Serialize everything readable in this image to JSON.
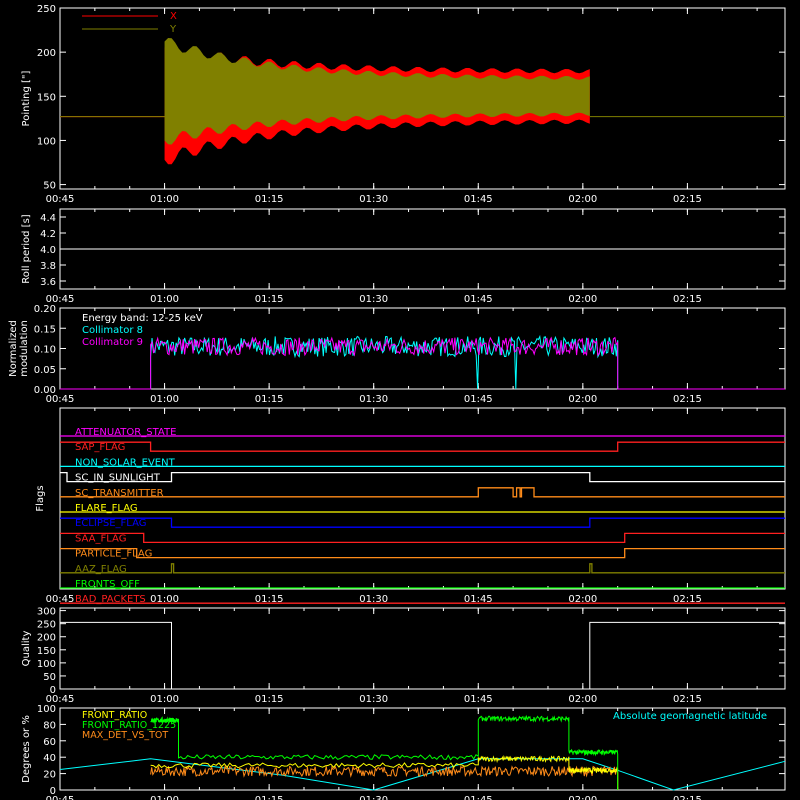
{
  "time_axis": {
    "ticks": [
      "00:45",
      "01:00",
      "01:15",
      "01:30",
      "01:45",
      "02:00",
      "02:15"
    ]
  },
  "colors": {
    "background": "#000000",
    "axes": "#ffffff",
    "x_series": "#ff0000",
    "y_series": "#808000",
    "white": "#ffffff",
    "cyan": "#00ffff",
    "magenta": "#ff00ff",
    "green": "#00ff00",
    "orange": "#ff8c1a",
    "yellow": "#ffff00",
    "blue": "#0000ff",
    "red": "#ff2020"
  },
  "chart_data": [
    {
      "type": "area",
      "ylabel": "Pointing [\"]",
      "ylim": [
        45,
        250
      ],
      "yticks": [
        "50",
        "100",
        "150",
        "200",
        "250"
      ],
      "legend_position": "top-left",
      "series": [
        {
          "name": "X",
          "color_key": "x_series",
          "start_time": "01:00",
          "end_time": "02:01",
          "envelope_start": [
            78,
            205
          ],
          "envelope_end": [
            122,
            178
          ],
          "baseline": 127
        },
        {
          "name": "Y",
          "color_key": "y_series",
          "start_time": "01:00",
          "end_time": "02:01",
          "envelope_start": [
            100,
            212
          ],
          "envelope_end": [
            130,
            170
          ],
          "baseline": 127
        }
      ]
    },
    {
      "type": "line",
      "ylabel": "Roll period [s]",
      "ylim": [
        3.5,
        4.5
      ],
      "yticks": [
        "3.6",
        "3.8",
        "4.0",
        "4.2",
        "4.4"
      ],
      "series": [
        {
          "name": "",
          "color_key": "white",
          "value": 4.0
        }
      ]
    },
    {
      "type": "line",
      "ylabel": "Normalized modulation",
      "ylim": [
        0.0,
        0.2
      ],
      "yticks": [
        "0.00",
        "0.05",
        "0.10",
        "0.15",
        "0.20"
      ],
      "annotation": "Energy band: 12-25 keV",
      "series": [
        {
          "name": "Collimator 8",
          "color_key": "cyan",
          "start_time": "00:58",
          "end_time": "02:05",
          "mean": 0.105,
          "spread": 0.025,
          "dropouts": [
            [
              "01:44.7",
              "01:45.0"
            ],
            [
              "01:50.2",
              "01:50.5"
            ]
          ]
        },
        {
          "name": "Collimator 9",
          "color_key": "magenta",
          "start_time": "00:58",
          "end_time": "02:05",
          "mean": 0.105,
          "spread": 0.022
        }
      ]
    },
    {
      "type": "line",
      "ylabel": "Flags",
      "flags": [
        {
          "name": "ATTENUATOR_STATE",
          "color_key": "magenta",
          "segments": [
            [
              "00:45",
              "02:29",
              0
            ]
          ]
        },
        {
          "name": "SAP_FLAG",
          "color_key": "red",
          "segments": [
            [
              "00:45",
              "00:58",
              1
            ],
            [
              "00:58",
              "02:05",
              0
            ],
            [
              "02:05",
              "02:29",
              1
            ]
          ]
        },
        {
          "name": "NON_SOLAR_EVENT",
          "color_key": "cyan",
          "segments": [
            [
              "00:45",
              "02:29",
              0
            ]
          ]
        },
        {
          "name": "SC_IN_SUNLIGHT",
          "color_key": "white",
          "segments": [
            [
              "00:45",
              "00:46",
              1
            ],
            [
              "00:46",
              "01:01",
              0
            ],
            [
              "01:01",
              "02:01",
              1
            ],
            [
              "02:01",
              "02:29",
              0
            ]
          ]
        },
        {
          "name": "SC_TRANSMITTER",
          "color_key": "orange",
          "segments": [
            [
              "00:45",
              "01:45",
              0
            ],
            [
              "01:45",
              "01:50",
              1
            ],
            [
              "01:50",
              "01:50.5",
              0
            ],
            [
              "01:50.5",
              "01:51",
              1
            ],
            [
              "01:51",
              "01:51.2",
              0
            ],
            [
              "01:51.2",
              "01:53",
              1
            ],
            [
              "01:53",
              "02:29",
              0
            ]
          ]
        },
        {
          "name": "FLARE_FLAG",
          "color_key": "yellow",
          "segments": [
            [
              "00:45",
              "02:29",
              0
            ]
          ]
        },
        {
          "name": "ECLIPSE_FLAG",
          "color_key": "blue",
          "segments": [
            [
              "00:45",
              "01:01",
              1
            ],
            [
              "01:01",
              "02:01",
              0
            ],
            [
              "02:01",
              "02:29",
              1
            ]
          ]
        },
        {
          "name": "SAA_FLAG",
          "color_key": "red",
          "segments": [
            [
              "00:45",
              "00:57",
              1
            ],
            [
              "00:57",
              "02:06",
              0
            ],
            [
              "02:06",
              "02:29",
              1
            ]
          ]
        },
        {
          "name": "PARTICLE_FLAG",
          "color_key": "orange",
          "segments": [
            [
              "00:45",
              "00:56",
              1
            ],
            [
              "00:56",
              "02:06",
              0
            ],
            [
              "02:06",
              "02:29",
              1
            ]
          ]
        },
        {
          "name": "AAZ_FLAG",
          "color_key": "y_series",
          "segments": [
            [
              "00:45",
              "01:01",
              0
            ],
            [
              "01:01",
              "01:01.3",
              1
            ],
            [
              "01:01.3",
              "02:01",
              0
            ],
            [
              "02:01",
              "02:01.3",
              1
            ],
            [
              "02:01.3",
              "02:29",
              0
            ]
          ]
        },
        {
          "name": "FRONTS_OFF",
          "color_key": "green",
          "segments": [
            [
              "00:45",
              "02:29",
              0
            ]
          ]
        },
        {
          "name": "BAD_PACKETS",
          "color_key": "red",
          "segments": [
            [
              "00:45",
              "02:29",
              0
            ]
          ]
        }
      ]
    },
    {
      "type": "line",
      "ylabel": "Quality",
      "ylim": [
        0,
        310
      ],
      "yticks": [
        "0",
        "50",
        "100",
        "150",
        "200",
        "250",
        "300"
      ],
      "series": [
        {
          "name": "",
          "color_key": "white",
          "points": [
            [
              "00:45",
              255
            ],
            [
              "01:01",
              255
            ],
            [
              "01:01",
              0
            ],
            [
              "02:01",
              0
            ],
            [
              "02:01",
              255
            ],
            [
              "02:29",
              255
            ]
          ]
        }
      ]
    },
    {
      "type": "line",
      "ylabel": "Degrees or %",
      "ylim": [
        0,
        100
      ],
      "yticks": [
        "0",
        "20",
        "40",
        "60",
        "80",
        "100"
      ],
      "series": [
        {
          "name": "FRONT_RATIO",
          "color_key": "yellow"
        },
        {
          "name": "FRONT_RATIO_1225",
          "color_key": "green"
        },
        {
          "name": "MAX_DET_VS_TOT",
          "color_key": "orange"
        },
        {
          "name": "Absolute geomagnetic latitude",
          "color_key": "cyan"
        }
      ],
      "green_levels": [
        [
          "00:58",
          "01:02",
          85
        ],
        [
          "01:02",
          "01:45",
          40
        ],
        [
          "01:45",
          "01:58",
          87
        ],
        [
          "01:58",
          "02:05",
          46
        ]
      ],
      "yellow_levels": [
        [
          "00:58",
          "01:45",
          30
        ],
        [
          "01:45",
          "01:58",
          38
        ],
        [
          "01:58",
          "02:05",
          24
        ]
      ],
      "orange_level": 23,
      "geomag_points": [
        [
          "00:45",
          25
        ],
        [
          "00:58",
          38
        ],
        [
          "01:17",
          18
        ],
        [
          "01:30",
          0
        ],
        [
          "01:45",
          38
        ],
        [
          "02:00",
          38
        ],
        [
          "02:05",
          24
        ],
        [
          "02:13",
          0
        ],
        [
          "02:29",
          35
        ]
      ]
    }
  ]
}
